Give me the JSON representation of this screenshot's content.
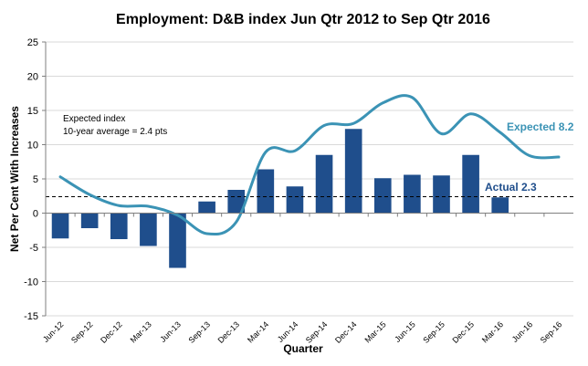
{
  "chart_data": {
    "type": "bar",
    "title": "Employment: D&B index Jun Qtr 2012 to Sep Qtr 2016",
    "xlabel": "Quarter",
    "ylabel": "Net Per Cent With Increases",
    "ylim": [
      -15,
      25
    ],
    "yticks": [
      -15,
      -10,
      -5,
      0,
      5,
      10,
      15,
      20,
      25
    ],
    "grid": true,
    "categories": [
      "Jun-12",
      "Sep-12",
      "Dec-12",
      "Mar-13",
      "Jun-13",
      "Sep-13",
      "Dec-13",
      "Mar-14",
      "Jun-14",
      "Sep-14",
      "Dec-14",
      "Mar-15",
      "Jun-15",
      "Sep-15",
      "Dec-15",
      "Mar-16",
      "Jun-16",
      "Sep-16"
    ],
    "series": [
      {
        "name": "Actual",
        "type": "bar",
        "color": "#1F4E8C",
        "values": [
          -3.7,
          -2.2,
          -3.8,
          -4.8,
          -8.0,
          1.7,
          3.4,
          6.4,
          3.9,
          8.5,
          12.3,
          5.1,
          5.6,
          5.5,
          8.5,
          2.3,
          null,
          null
        ]
      },
      {
        "name": "Expected",
        "type": "line",
        "color": "#3B93B5",
        "values": [
          5.3,
          2.7,
          1.1,
          1.0,
          -0.3,
          -3.0,
          -1.3,
          8.9,
          9.1,
          12.8,
          13.1,
          16.1,
          16.9,
          11.6,
          14.5,
          11.8,
          8.4,
          8.2
        ]
      }
    ],
    "average_line": {
      "value": 2.4,
      "color": "#000000",
      "style": "dashed"
    },
    "annotations": {
      "expected_index_line1": "Expected index",
      "expected_index_line2": "10-year average = 2.4 pts",
      "expected_label": "Expected 8.2",
      "actual_label": "Actual 2.3"
    }
  }
}
